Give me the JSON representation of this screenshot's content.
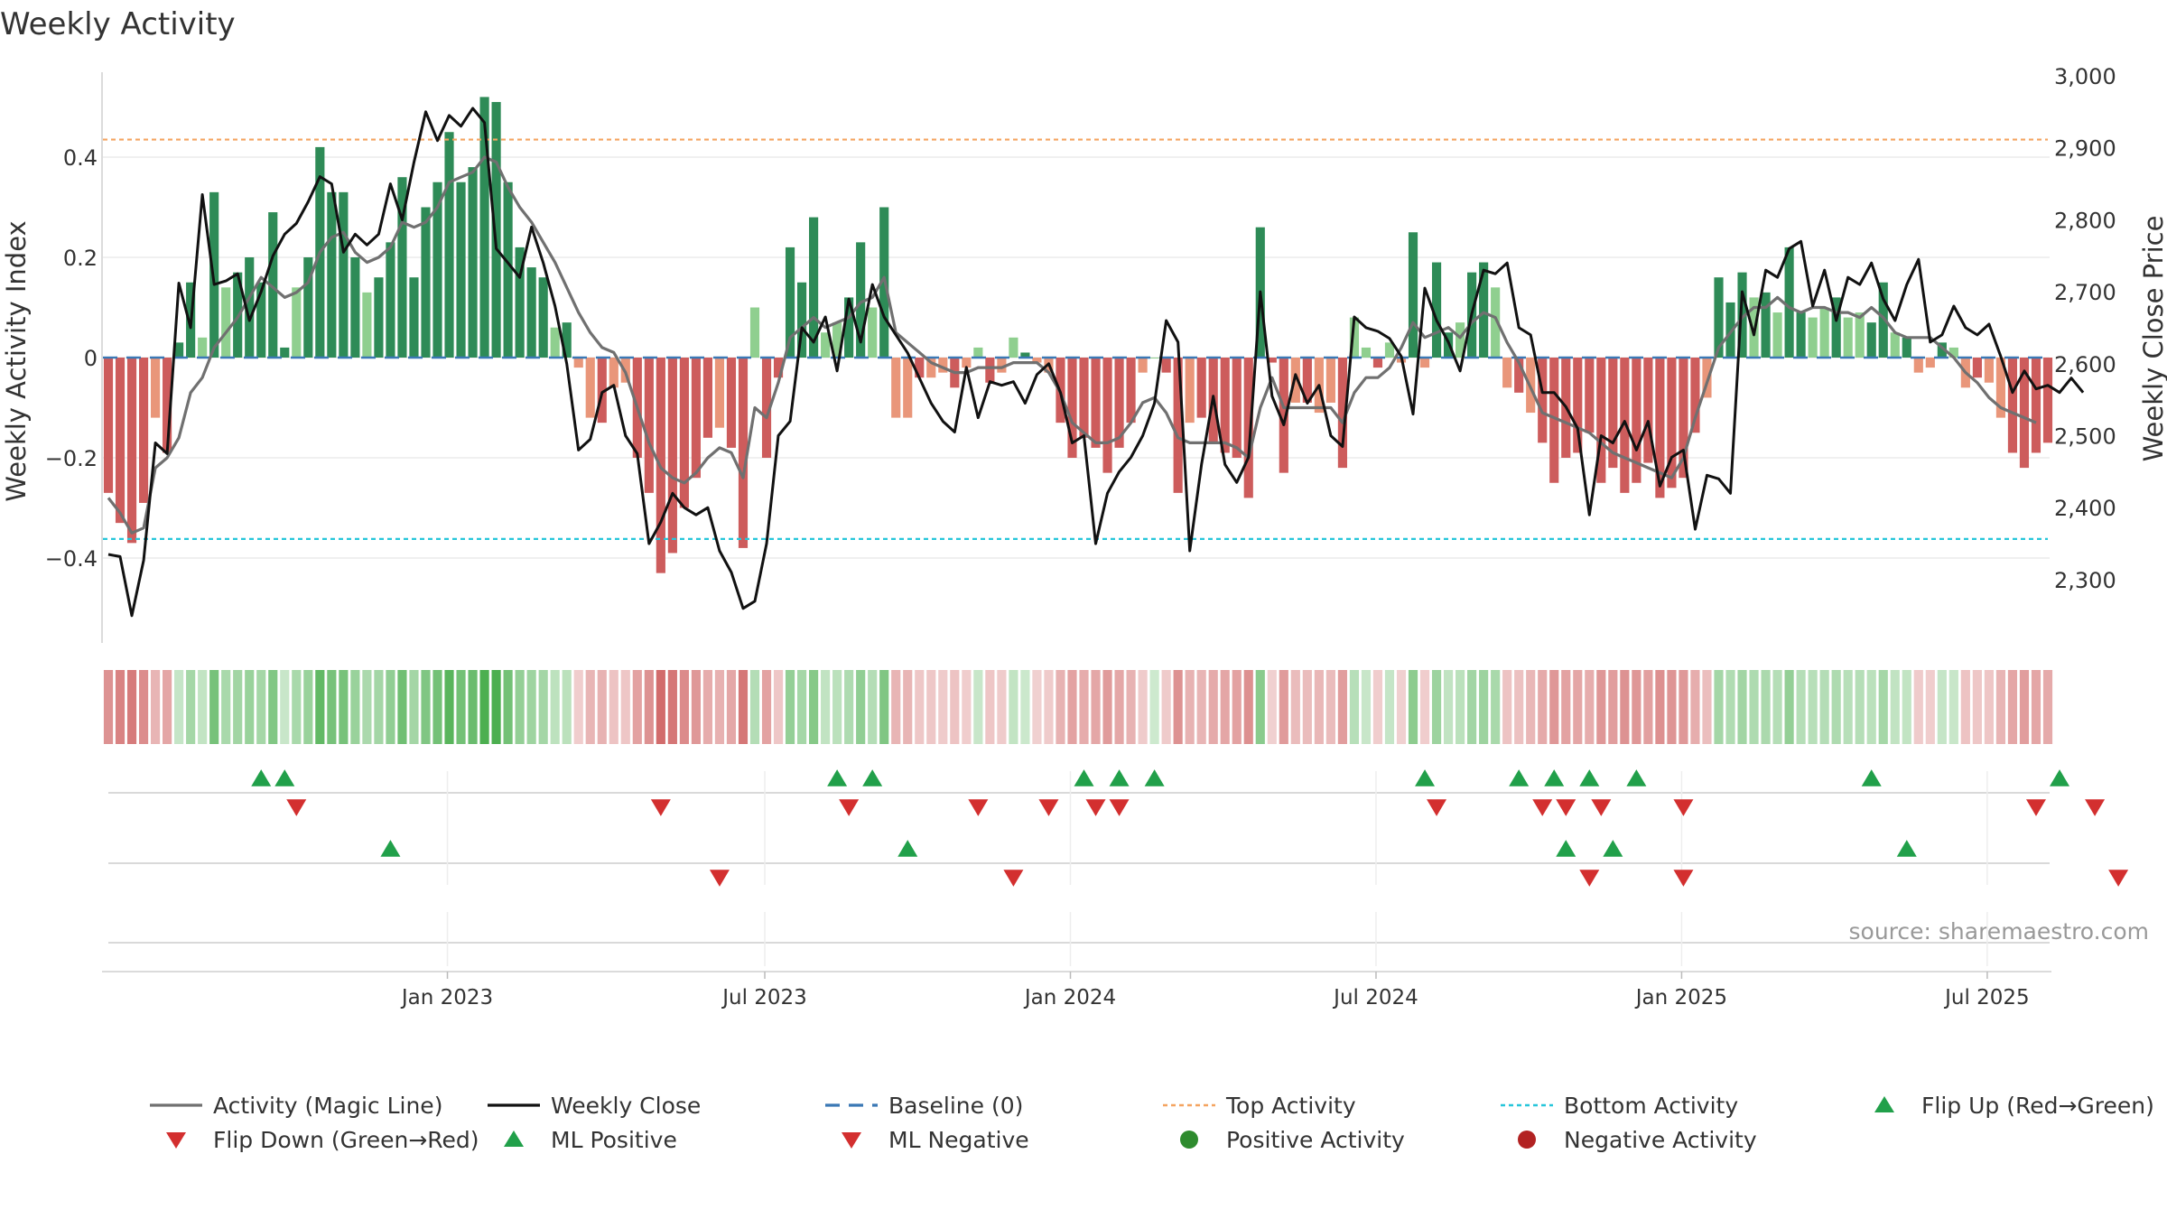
{
  "chart_data": {
    "type": "bar+line",
    "title": "Weekly Activity",
    "ylabel_left": "Weekly Activity Index",
    "ylabel_right": "Weekly Close Price",
    "source": "source: sharemaestro.com",
    "x_ticks": [
      "Jan 2023",
      "Jul 2023",
      "Jan 2024",
      "Jul 2024",
      "Jan 2025",
      "Jul 2025"
    ],
    "y_left_ticks": [
      "0.4",
      "0.2",
      "0",
      "−0.2",
      "−0.4"
    ],
    "y_left_tick_values": [
      0.4,
      0.2,
      0,
      -0.2,
      -0.4
    ],
    "y_right_ticks": [
      "3,000",
      "2,900",
      "2,800",
      "2,700",
      "2,600",
      "2,500",
      "2,400",
      "2,300"
    ],
    "y_right_tick_values": [
      3000,
      2900,
      2800,
      2700,
      2600,
      2500,
      2400,
      2300
    ],
    "ylim_left": [
      -0.57,
      0.56
    ],
    "ylim_right": [
      2225,
      3000
    ],
    "top_activity": 0.435,
    "bottom_activity": -0.362,
    "baseline": 0,
    "activity": [
      -0.27,
      -0.33,
      -0.37,
      -0.29,
      -0.12,
      -0.19,
      0.03,
      0.15,
      0.04,
      0.33,
      0.14,
      0.17,
      0.2,
      0.15,
      0.29,
      0.02,
      0.14,
      0.2,
      0.42,
      0.33,
      0.33,
      0.2,
      0.13,
      0.16,
      0.23,
      0.36,
      0.16,
      0.3,
      0.35,
      0.45,
      0.35,
      0.38,
      0.52,
      0.51,
      0.35,
      0.22,
      0.18,
      0.16,
      0.06,
      0.07,
      -0.02,
      -0.12,
      -0.13,
      -0.06,
      -0.05,
      -0.2,
      -0.27,
      -0.43,
      -0.39,
      -0.3,
      -0.24,
      -0.16,
      -0.14,
      -0.18,
      -0.38,
      0.1,
      -0.2,
      -0.04,
      0.22,
      0.15,
      0.28,
      0.05,
      0.07,
      0.12,
      0.23,
      0.1,
      0.3,
      -0.12,
      -0.12,
      -0.04,
      -0.04,
      -0.03,
      -0.06,
      -0.02,
      0.02,
      -0.05,
      -0.03,
      0.04,
      0.01,
      -0.01,
      -0.03,
      -0.13,
      -0.2,
      -0.16,
      -0.18,
      -0.23,
      -0.18,
      -0.13,
      -0.03,
      0,
      -0.03,
      -0.27,
      -0.13,
      -0.12,
      -0.17,
      -0.19,
      -0.2,
      -0.28,
      0.26,
      -0.01,
      -0.23,
      -0.09,
      -0.09,
      -0.11,
      -0.09,
      -0.22,
      0.08,
      0.02,
      -0.02,
      0.03,
      -0.01,
      0.25,
      -0.02,
      0.19,
      0.05,
      0.07,
      0.17,
      0.19,
      0.14,
      -0.06,
      -0.07,
      -0.11,
      -0.17,
      -0.25,
      -0.2,
      -0.19,
      -0.15,
      -0.25,
      -0.22,
      -0.27,
      -0.25,
      -0.21,
      -0.28,
      -0.26,
      -0.24,
      -0.15,
      -0.08,
      0.16,
      0.11,
      0.17,
      0.12,
      0.13,
      0.09,
      0.22,
      0.09,
      0.08,
      0.1,
      0.12,
      0.08,
      0.09,
      0.07,
      0.15,
      0.05,
      0.04,
      -0.03,
      -0.02,
      0.03,
      0.02,
      -0.06,
      -0.04,
      -0.05,
      -0.12,
      -0.19,
      -0.22,
      -0.19,
      -0.17
    ],
    "magic_line": [
      -0.28,
      -0.31,
      -0.35,
      -0.34,
      -0.22,
      -0.2,
      -0.16,
      -0.07,
      -0.04,
      0.02,
      0.05,
      0.08,
      0.12,
      0.16,
      0.14,
      0.12,
      0.13,
      0.15,
      0.21,
      0.24,
      0.25,
      0.21,
      0.19,
      0.2,
      0.22,
      0.27,
      0.26,
      0.27,
      0.3,
      0.35,
      0.36,
      0.37,
      0.4,
      0.39,
      0.34,
      0.3,
      0.27,
      0.23,
      0.19,
      0.14,
      0.09,
      0.05,
      0.02,
      0.01,
      -0.03,
      -0.1,
      -0.17,
      -0.22,
      -0.24,
      -0.25,
      -0.23,
      -0.2,
      -0.18,
      -0.19,
      -0.24,
      -0.1,
      -0.12,
      -0.05,
      0.04,
      0.06,
      0.08,
      0.06,
      0.07,
      0.08,
      0.11,
      0.12,
      0.16,
      0.05,
      0.03,
      0.01,
      -0.01,
      -0.02,
      -0.03,
      -0.03,
      -0.02,
      -0.02,
      -0.02,
      -0.01,
      -0.01,
      -0.01,
      -0.03,
      -0.07,
      -0.13,
      -0.15,
      -0.17,
      -0.17,
      -0.16,
      -0.13,
      -0.09,
      -0.08,
      -0.11,
      -0.16,
      -0.17,
      -0.17,
      -0.17,
      -0.17,
      -0.18,
      -0.2,
      -0.1,
      -0.04,
      -0.1,
      -0.1,
      -0.1,
      -0.1,
      -0.1,
      -0.13,
      -0.07,
      -0.04,
      -0.04,
      -0.02,
      0.02,
      0.07,
      0.04,
      0.05,
      0.06,
      0.04,
      0.07,
      0.09,
      0.08,
      0.03,
      -0.01,
      -0.06,
      -0.11,
      -0.12,
      -0.13,
      -0.14,
      -0.15,
      -0.17,
      -0.19,
      -0.2,
      -0.21,
      -0.22,
      -0.23,
      -0.24,
      -0.2,
      -0.12,
      -0.05,
      0.02,
      0.05,
      0.08,
      0.1,
      0.1,
      0.12,
      0.1,
      0.09,
      0.1,
      0.1,
      0.09,
      0.09,
      0.08,
      0.1,
      0.08,
      0.05,
      0.04,
      0.04,
      0.04,
      0.02,
      0.0,
      -0.03,
      -0.05,
      -0.08,
      -0.1,
      -0.11,
      -0.12,
      -0.13
    ],
    "weekly_close": [
      2335,
      2332,
      2250,
      2327,
      2490,
      2475,
      2712,
      2650,
      2835,
      2710,
      2715,
      2725,
      2660,
      2700,
      2750,
      2780,
      2795,
      2825,
      2860,
      2850,
      2755,
      2780,
      2765,
      2780,
      2850,
      2800,
      2880,
      2950,
      2910,
      2945,
      2930,
      2955,
      2935,
      2760,
      2740,
      2720,
      2790,
      2740,
      2680,
      2600,
      2480,
      2495,
      2560,
      2570,
      2500,
      2475,
      2350,
      2380,
      2420,
      2400,
      2390,
      2400,
      2340,
      2310,
      2260,
      2270,
      2350,
      2500,
      2520,
      2650,
      2630,
      2665,
      2590,
      2690,
      2630,
      2710,
      2665,
      2640,
      2615,
      2580,
      2545,
      2520,
      2505,
      2595,
      2525,
      2575,
      2570,
      2575,
      2545,
      2585,
      2600,
      2560,
      2490,
      2500,
      2350,
      2420,
      2450,
      2470,
      2500,
      2545,
      2660,
      2630,
      2340,
      2460,
      2555,
      2460,
      2435,
      2470,
      2700,
      2555,
      2515,
      2585,
      2545,
      2570,
      2500,
      2485,
      2665,
      2650,
      2645,
      2635,
      2610,
      2530,
      2705,
      2660,
      2630,
      2590,
      2670,
      2730,
      2725,
      2740,
      2650,
      2640,
      2560,
      2560,
      2540,
      2510,
      2390,
      2500,
      2490,
      2520,
      2480,
      2520,
      2430,
      2470,
      2480,
      2370,
      2445,
      2440,
      2420,
      2700,
      2640,
      2730,
      2720,
      2760,
      2770,
      2680,
      2730,
      2660,
      2720,
      2710,
      2740,
      2690,
      2660,
      2710,
      2745,
      2630,
      2640,
      2680,
      2650,
      2640,
      2655,
      2610,
      2560,
      2590,
      2565,
      2570,
      2560,
      2580,
      2560
    ]
  },
  "signals": {
    "flip_up_rows": {
      "row1_up": [
        13,
        15,
        62,
        65,
        83,
        86,
        89,
        112,
        120,
        123,
        126,
        130,
        150,
        166
      ],
      "row1_down": [
        16,
        47,
        63,
        74,
        80,
        84,
        86,
        113,
        122,
        124,
        127,
        134,
        164,
        169
      ],
      "row2_up": [
        24,
        68,
        124,
        128,
        153
      ],
      "row2_down": [
        52,
        77,
        126,
        134,
        171
      ]
    }
  },
  "legend": [
    {
      "label": "Activity (Magic Line)",
      "kind": "line",
      "color": "#707070"
    },
    {
      "label": "Weekly Close",
      "kind": "line",
      "color": "#111111"
    },
    {
      "label": "Baseline (0)",
      "kind": "dash",
      "color": "#3a78b5"
    },
    {
      "label": "Top Activity",
      "kind": "dot",
      "color": "#f4a460"
    },
    {
      "label": "Bottom Activity",
      "kind": "dot",
      "color": "#26c6da"
    },
    {
      "label": "Flip Up (Red→Green)",
      "kind": "up",
      "color": "#21a04a"
    },
    {
      "label": "Flip Down (Green→Red)",
      "kind": "down",
      "color": "#d32f2f"
    },
    {
      "label": "ML Positive",
      "kind": "up",
      "color": "#21a04a"
    },
    {
      "label": "ML Negative",
      "kind": "down",
      "color": "#d32f2f"
    },
    {
      "label": "Positive Activity",
      "kind": "circle",
      "color": "#2e8b2e"
    },
    {
      "label": "Negative Activity",
      "kind": "circle",
      "color": "#b22222"
    }
  ],
  "colors": {
    "pos_dark": "#2e8b57",
    "pos_light": "#8fcf8f",
    "neg_dark": "#cd5c5c",
    "neg_light": "#e9967a",
    "up": "#21a04a",
    "down": "#d32f2f"
  }
}
